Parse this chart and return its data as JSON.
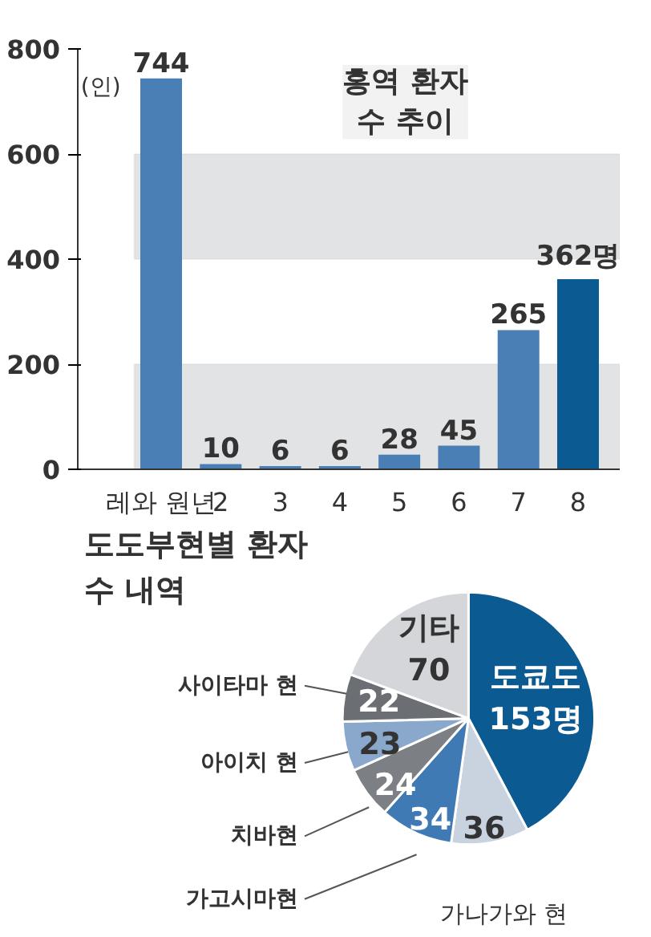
{
  "chart_data": [
    {
      "type": "bar",
      "title": "홍역 환자\n수 추이",
      "ylabel": "(인)",
      "categories": [
        "레와 원년",
        "2",
        "3",
        "4",
        "5",
        "6",
        "7",
        "8"
      ],
      "values": [
        744,
        10,
        6,
        6,
        28,
        45,
        265,
        362
      ],
      "colors": [
        "#4a7fb5",
        "#4a7fb5",
        "#4a7fb5",
        "#4a7fb5",
        "#4a7fb5",
        "#4a7fb5",
        "#4a7fb5",
        "#0b5a91"
      ],
      "value_labels": [
        "744",
        "10",
        "6",
        "6",
        "28",
        "45",
        "265",
        "362명"
      ],
      "ylim": [
        0,
        800
      ],
      "yticks": [
        0,
        200,
        400,
        600,
        800
      ],
      "bands": [
        {
          "axis": "y",
          "from": 0,
          "to": 200,
          "color": "#e2e3e5"
        },
        {
          "axis": "y",
          "from": 400,
          "to": 600,
          "color": "#e2e3e5"
        }
      ],
      "grid": false
    },
    {
      "type": "pie",
      "title": "도도부현별 환자\n수 내역",
      "categories": [
        "도쿄도",
        "가나가와 현",
        "가고시마현",
        "치바현",
        "아이치 현",
        "사이타마 현",
        "기타"
      ],
      "values": [
        153,
        36,
        34,
        24,
        23,
        22,
        70
      ],
      "colors": [
        "#0b5a91",
        "#c9d3e0",
        "#3f7ab4",
        "#7c7f84",
        "#8aa7cc",
        "#6b6e73",
        "#d4d6da"
      ],
      "value_labels": [
        "153명",
        "36",
        "34",
        "24",
        "23",
        "22",
        "70"
      ]
    }
  ]
}
